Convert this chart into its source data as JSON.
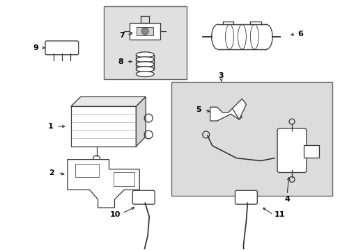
{
  "bg_color": "#ffffff",
  "lc": "#333333",
  "box_fill_78": "#e0e0e0",
  "box_fill_345": "#dcdcdc",
  "lw": 0.9,
  "fig_w": 4.89,
  "fig_h": 3.6,
  "dpi": 100
}
